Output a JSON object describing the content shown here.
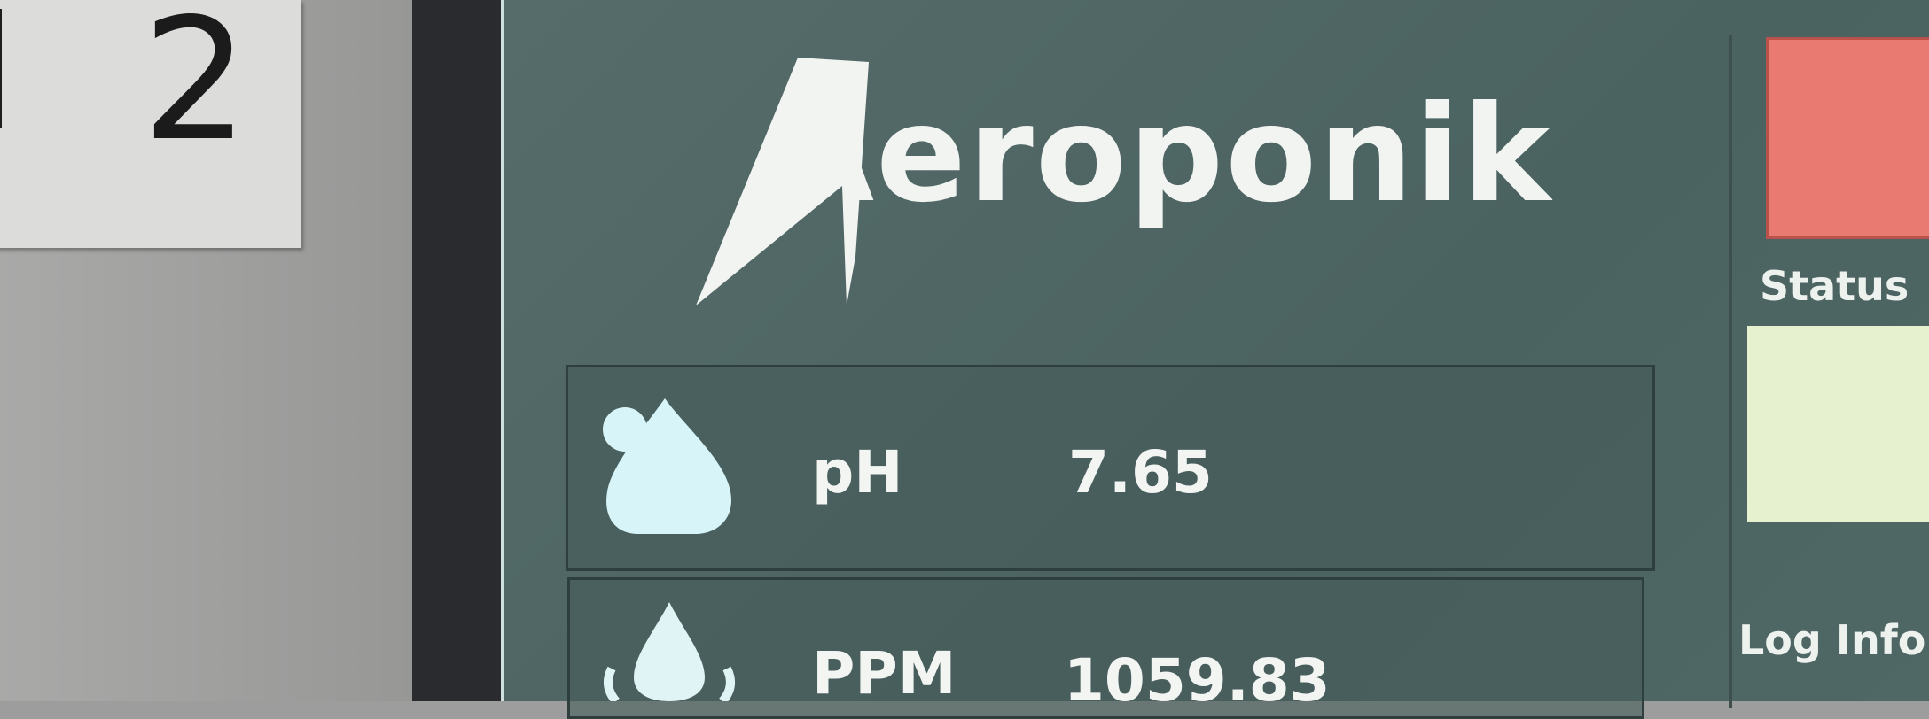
{
  "paper": {
    "label": "2"
  },
  "screen": {
    "logo": "Aeroponik",
    "readings": [
      {
        "label": "pH",
        "value": "7.65"
      },
      {
        "label": "PPM",
        "value": "1059.83"
      }
    ],
    "side": {
      "status": "Status",
      "log": "Log Info"
    }
  }
}
